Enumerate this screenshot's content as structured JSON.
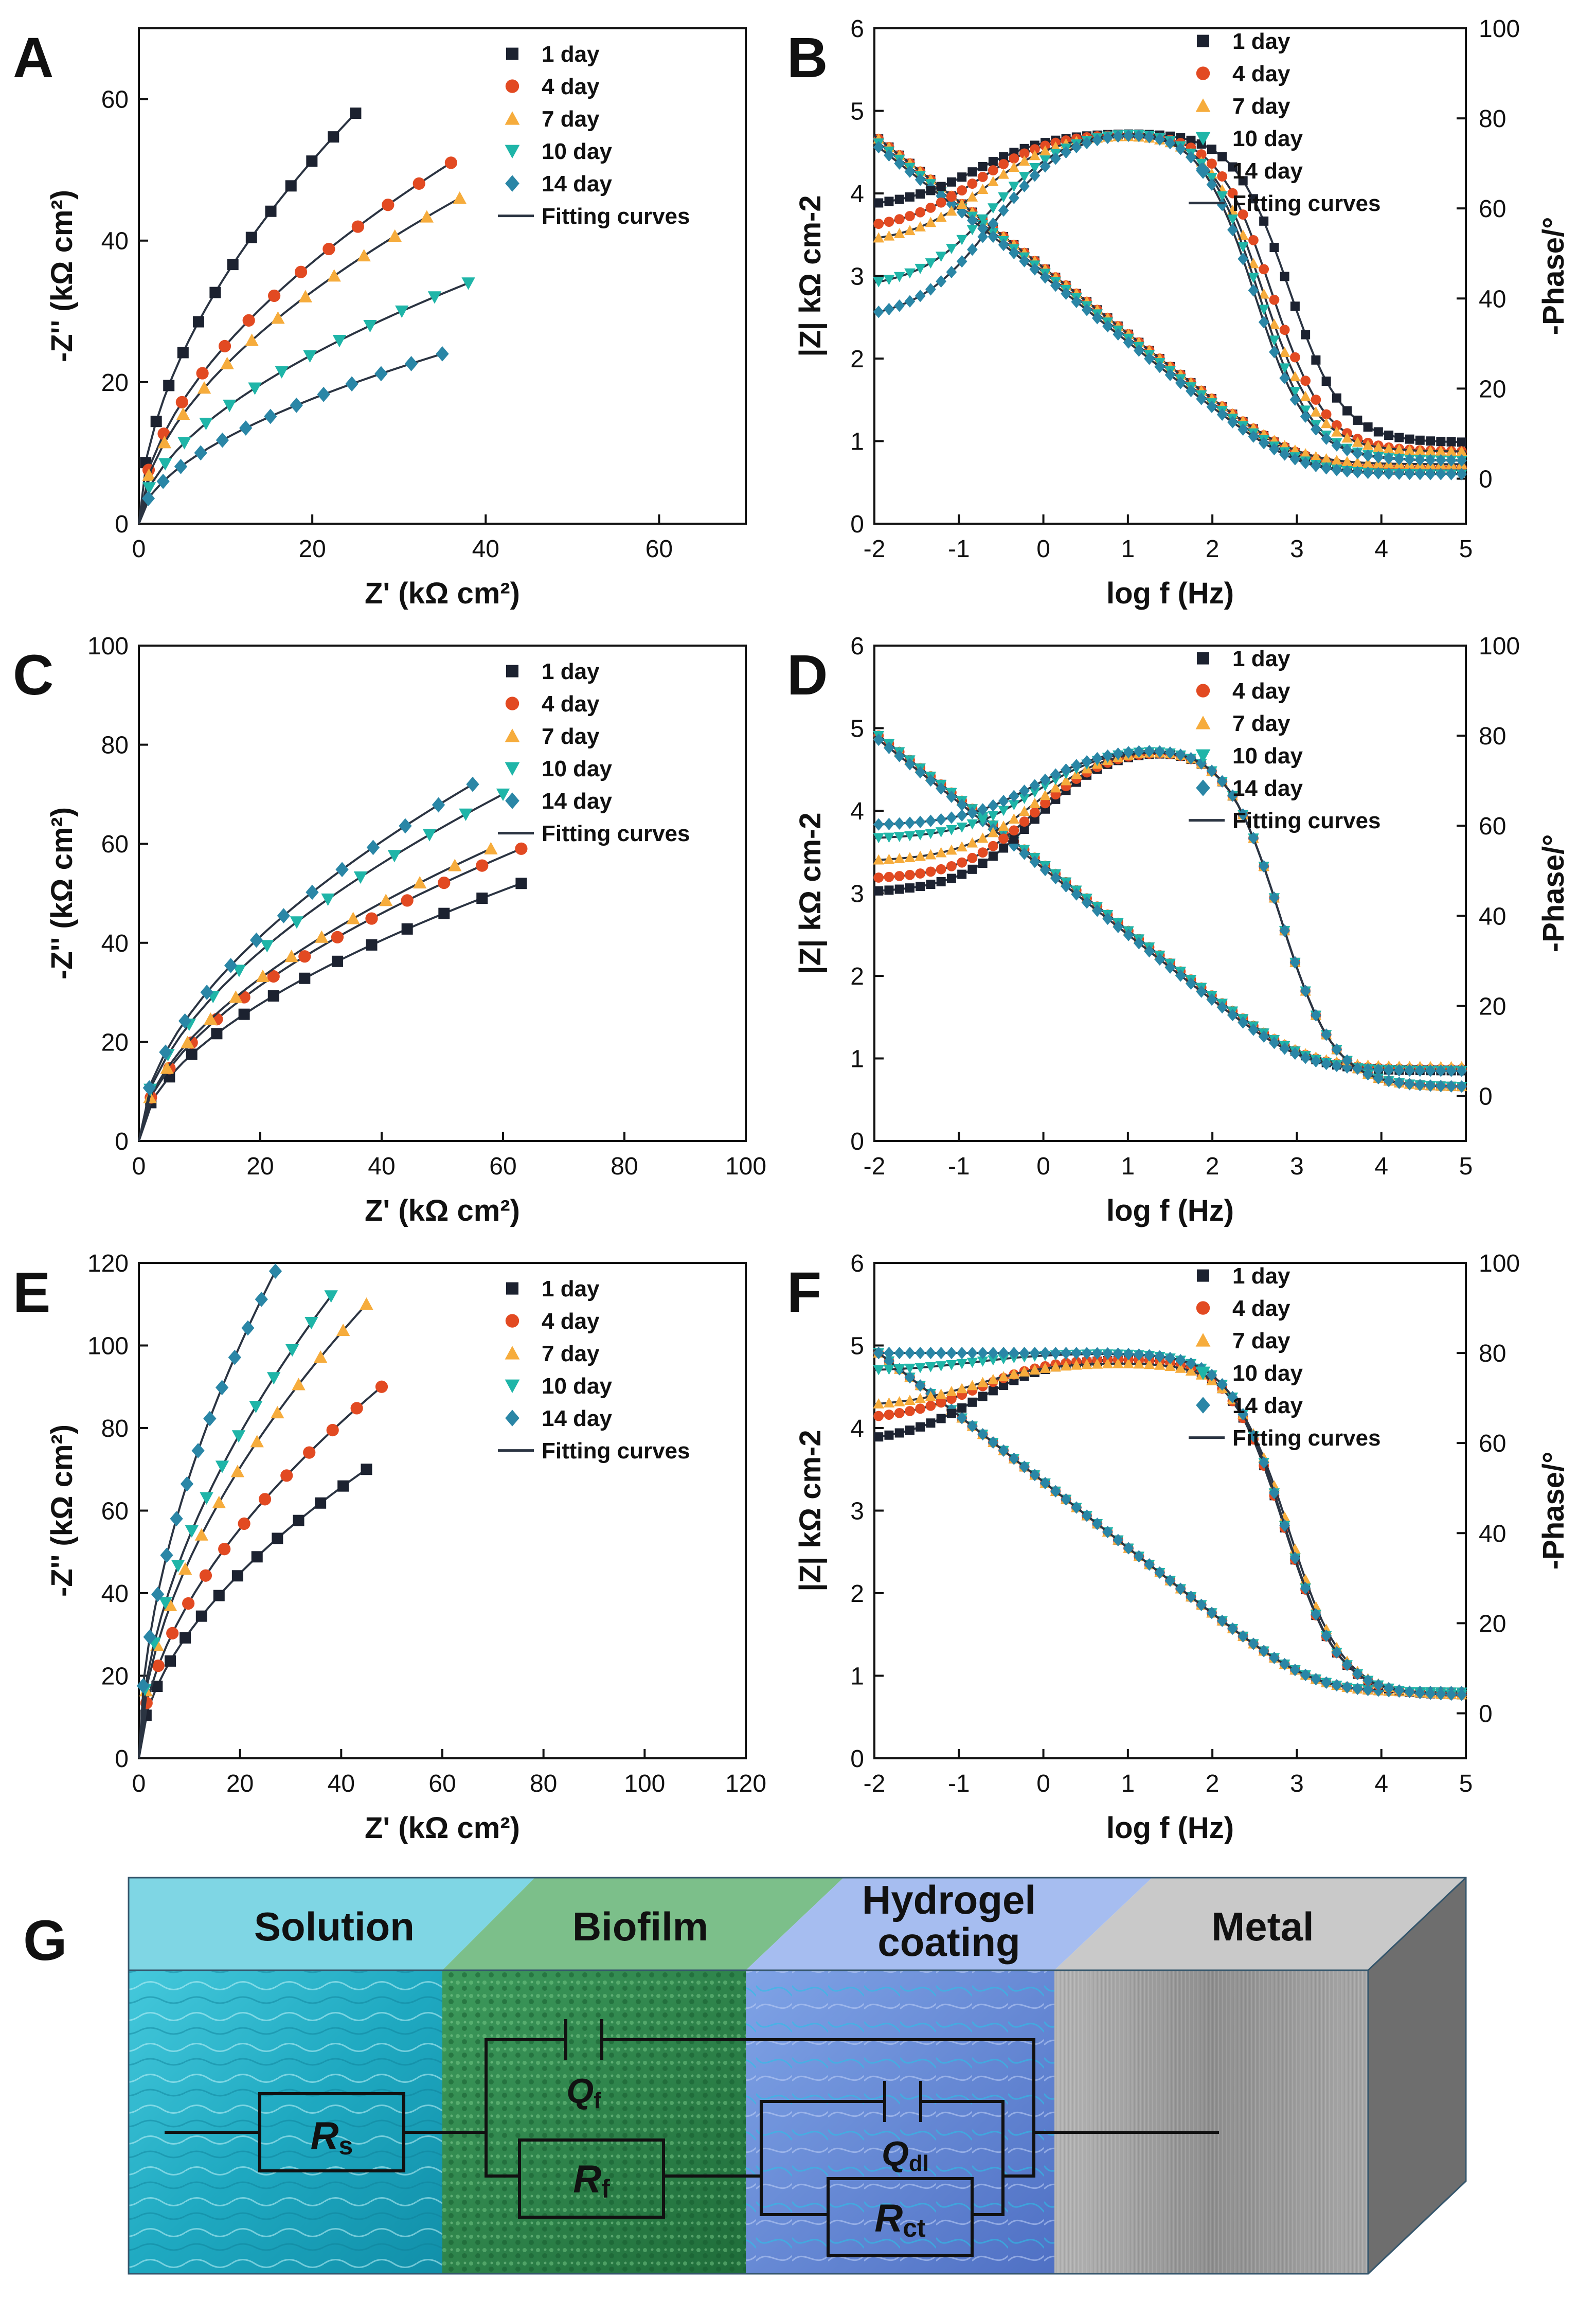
{
  "figure": {
    "legend_days": [
      "1 day",
      "4 day",
      "7 day",
      "10 day",
      "14 day"
    ],
    "fitting_label": "Fitting curves"
  },
  "series_style": {
    "colors": [
      "#1c2230",
      "#e24a22",
      "#f6ac3c",
      "#1fb5a8",
      "#2a86a6"
    ],
    "markers": [
      "square",
      "circle",
      "triangle-up",
      "triangle-down",
      "diamond"
    ],
    "fit_color": "#2b3442"
  },
  "chart_data": [
    {
      "panel": "A",
      "type": "scatter",
      "xlabel": "Z' (kΩ cm²)",
      "ylabel": "-Z'' (kΩ cm²)",
      "xlim": [
        0,
        70
      ],
      "ylim": [
        0,
        70
      ],
      "xticks": [
        0,
        20,
        40,
        60
      ],
      "yticks": [
        0,
        20,
        40,
        60
      ],
      "series": [
        {
          "name": "1 day",
          "x_end": 25,
          "y_end": 58
        },
        {
          "name": "4 day",
          "x_end": 36,
          "y_end": 51
        },
        {
          "name": "7 day",
          "x_end": 37,
          "y_end": 46
        },
        {
          "name": "10 day",
          "x_end": 38,
          "y_end": 34
        },
        {
          "name": "14 day",
          "x_end": 35,
          "y_end": 24
        }
      ],
      "legend": [
        "1 day",
        "4 day",
        "7 day",
        "10 day",
        "14 day",
        "Fitting curves"
      ]
    },
    {
      "panel": "C",
      "type": "scatter",
      "xlabel": "Z' (kΩ cm²)",
      "ylabel": "-Z'' (kΩ cm²)",
      "xlim": [
        0,
        100
      ],
      "ylim": [
        0,
        100
      ],
      "xticks": [
        0,
        20,
        40,
        60,
        80,
        100
      ],
      "yticks": [
        0,
        20,
        40,
        60,
        80,
        100
      ],
      "series": [
        {
          "name": "1 day",
          "x_end": 63,
          "y_end": 52
        },
        {
          "name": "4 day",
          "x_end": 63,
          "y_end": 59
        },
        {
          "name": "7 day",
          "x_end": 58,
          "y_end": 59
        },
        {
          "name": "10 day",
          "x_end": 60,
          "y_end": 70
        },
        {
          "name": "14 day",
          "x_end": 55,
          "y_end": 72
        }
      ],
      "legend": [
        "1 day",
        "4 day",
        "7 day",
        "10 day",
        "14 day",
        "Fitting curves"
      ]
    },
    {
      "panel": "E",
      "type": "scatter",
      "xlabel": "Z' (kΩ cm²)",
      "ylabel": "-Z'' (kΩ cm²)",
      "xlim": [
        0,
        120
      ],
      "ylim": [
        0,
        120
      ],
      "xticks": [
        0,
        20,
        40,
        60,
        80,
        100,
        120
      ],
      "yticks": [
        0,
        20,
        40,
        60,
        80,
        100,
        120
      ],
      "series": [
        {
          "name": "1 day",
          "x_end": 45,
          "y_end": 70
        },
        {
          "name": "4 day",
          "x_end": 48,
          "y_end": 90
        },
        {
          "name": "7 day",
          "x_end": 45,
          "y_end": 110
        },
        {
          "name": "10 day",
          "x_end": 38,
          "y_end": 112
        },
        {
          "name": "14 day",
          "x_end": 27,
          "y_end": 118
        }
      ],
      "legend": [
        "1 day",
        "4 day",
        "7 day",
        "10 day",
        "14 day",
        "Fitting curves"
      ]
    },
    {
      "panel": "B",
      "type": "line",
      "xlabel": "log f (Hz)",
      "ylabel": "|Z| kΩ cm-2",
      "y2label": "-Phase/°",
      "xlim": [
        -2,
        5
      ],
      "ylim": [
        0,
        6
      ],
      "y2lim": [
        -10,
        100
      ],
      "xticks": [
        -2,
        -1,
        0,
        1,
        2,
        3,
        4,
        5
      ],
      "yticks": [
        0,
        1,
        2,
        3,
        4,
        5,
        6
      ],
      "y2ticks": [
        0,
        20,
        40,
        60,
        80,
        100
      ],
      "modulus": [
        {
          "name": "1 day",
          "start": 4.7,
          "plateau": 0.65
        },
        {
          "name": "4 day",
          "start": 4.7,
          "plateau": 0.68
        },
        {
          "name": "7 day",
          "start": 4.7,
          "plateau": 0.72
        },
        {
          "name": "10 day",
          "start": 4.65,
          "plateau": 0.6
        },
        {
          "name": "14 day",
          "start": 4.6,
          "plateau": 0.6
        }
      ],
      "phase": [
        {
          "name": "1 day",
          "start": 60,
          "peak": 77,
          "peak_at": 0.3,
          "corner": 2.9,
          "end": 8
        },
        {
          "name": "4 day",
          "start": 55,
          "peak": 77,
          "peak_at": 0.3,
          "corner": 2.7,
          "end": 6
        },
        {
          "name": "7 day",
          "start": 52,
          "peak": 77,
          "peak_at": 0.4,
          "corner": 2.6,
          "end": 6
        },
        {
          "name": "10 day",
          "start": 42,
          "peak": 78,
          "peak_at": 0.5,
          "corner": 2.55,
          "end": 4
        },
        {
          "name": "14 day",
          "start": 35,
          "peak": 78,
          "peak_at": 0.5,
          "corner": 2.5,
          "end": 4
        }
      ],
      "legend": [
        "1 day",
        "4 day",
        "7 day",
        "10 day",
        "14 day",
        "Fitting curves"
      ]
    },
    {
      "panel": "D",
      "type": "line",
      "xlabel": "log f (Hz)",
      "ylabel": "|Z| kΩ cm-2",
      "y2label": "-Phase/°",
      "xlim": [
        -2,
        5
      ],
      "ylim": [
        0,
        6
      ],
      "y2lim": [
        -10,
        100
      ],
      "xticks": [
        -2,
        -1,
        0,
        1,
        2,
        3,
        4,
        5
      ],
      "yticks": [
        0,
        1,
        2,
        3,
        4,
        5,
        6
      ],
      "y2ticks": [
        0,
        20,
        40,
        60,
        80,
        100
      ],
      "modulus": [
        {
          "name": "1 day",
          "start": 4.95,
          "plateau": 0.85
        },
        {
          "name": "4 day",
          "start": 4.95,
          "plateau": 0.87
        },
        {
          "name": "7 day",
          "start": 4.95,
          "plateau": 0.9
        },
        {
          "name": "10 day",
          "start": 4.95,
          "plateau": 0.85
        },
        {
          "name": "14 day",
          "start": 4.9,
          "plateau": 0.85
        }
      ],
      "phase": [
        {
          "name": "1 day",
          "start": 45,
          "peak": 78,
          "peak_at": 1.0,
          "corner": 2.8,
          "end": 2
        },
        {
          "name": "4 day",
          "start": 48,
          "peak": 78,
          "peak_at": 1.0,
          "corner": 2.8,
          "end": 2
        },
        {
          "name": "7 day",
          "start": 52,
          "peak": 78,
          "peak_at": 1.0,
          "corner": 2.8,
          "end": 2
        },
        {
          "name": "10 day",
          "start": 57,
          "peak": 78,
          "peak_at": 1.0,
          "corner": 2.8,
          "end": 2
        },
        {
          "name": "14 day",
          "start": 60,
          "peak": 78,
          "peak_at": 1.0,
          "corner": 2.8,
          "end": 2
        }
      ],
      "legend": [
        "1 day",
        "4 day",
        "7 day",
        "10 day",
        "14 day",
        "Fitting curves"
      ]
    },
    {
      "panel": "F",
      "type": "line",
      "xlabel": "log f (Hz)",
      "ylabel": "|Z| kΩ cm-2",
      "y2label": "-Phase/°",
      "xlim": [
        -2,
        5
      ],
      "ylim": [
        0,
        6
      ],
      "y2lim": [
        -10,
        100
      ],
      "xticks": [
        -2,
        -1,
        0,
        1,
        2,
        3,
        4,
        5
      ],
      "yticks": [
        0,
        1,
        2,
        3,
        4,
        5,
        6
      ],
      "y2ticks": [
        0,
        20,
        40,
        60,
        80,
        100
      ],
      "modulus": [
        {
          "name": "1 day",
          "start": 4.95,
          "plateau": 0.8
        },
        {
          "name": "4 day",
          "start": 4.95,
          "plateau": 0.8
        },
        {
          "name": "7 day",
          "start": 4.95,
          "plateau": 0.8
        },
        {
          "name": "10 day",
          "start": 4.95,
          "plateau": 0.8
        },
        {
          "name": "14 day",
          "start": 4.95,
          "plateau": 0.8
        }
      ],
      "phase": [
        {
          "name": "1 day",
          "start": 60,
          "peak": 79,
          "peak_at": 0.3,
          "corner": 2.85,
          "end": 4
        },
        {
          "name": "4 day",
          "start": 65,
          "peak": 79,
          "peak_at": 0.3,
          "corner": 2.85,
          "end": 4
        },
        {
          "name": "7 day",
          "start": 68,
          "peak": 78,
          "peak_at": 0.3,
          "corner": 2.9,
          "end": 4
        },
        {
          "name": "10 day",
          "start": 76,
          "peak": 80,
          "peak_at": 0.3,
          "corner": 2.85,
          "end": 4
        },
        {
          "name": "14 day",
          "start": 80,
          "peak": 80,
          "peak_at": 0.3,
          "corner": 2.85,
          "end": 4
        }
      ],
      "legend": [
        "1 day",
        "4 day",
        "7 day",
        "10 day",
        "14 day",
        "Fitting curves"
      ]
    }
  ],
  "schematic": {
    "panel": "G",
    "layers": [
      "Solution",
      "Biofilm",
      "Hydrogel\ncoating",
      "Metal"
    ],
    "components": [
      {
        "symbol": "R",
        "sub": "s"
      },
      {
        "symbol": "Q",
        "sub": "f"
      },
      {
        "symbol": "R",
        "sub": "f"
      },
      {
        "symbol": "Q",
        "sub": "dl"
      },
      {
        "symbol": "R",
        "sub": "ct"
      }
    ],
    "colors": {
      "solution": "#25b3c9",
      "biofilm": "#2f8a4e",
      "hydrogel": "#6f8fd8",
      "metal": "#9a9a9a"
    }
  }
}
